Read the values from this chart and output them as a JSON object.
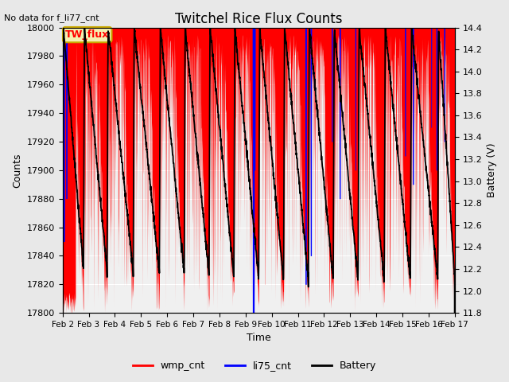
{
  "title": "Twitchel Rice Flux Counts",
  "no_data_label": "No data for f_li77_cnt",
  "tw_flux_label": "TW_flux",
  "xlabel": "Time",
  "ylabel_left": "Counts",
  "ylabel_right": "Battery (V)",
  "ylim_left": [
    17800,
    18000
  ],
  "ylim_right": [
    11.8,
    14.4
  ],
  "yticks_left": [
    17800,
    17820,
    17840,
    17860,
    17880,
    17900,
    17920,
    17940,
    17960,
    17980,
    18000
  ],
  "yticks_right": [
    11.8,
    12.0,
    12.2,
    12.4,
    12.6,
    12.8,
    13.0,
    13.2,
    13.4,
    13.6,
    13.8,
    14.0,
    14.2,
    14.4
  ],
  "xtick_labels": [
    "Feb 2",
    "Feb 3",
    "Feb 4",
    "Feb 5",
    "Feb 6",
    "Feb 7",
    "Feb 8",
    "Feb 9",
    "Feb 10",
    "Feb 11",
    "Feb 12",
    "Feb 13",
    "Feb 14",
    "Feb 15",
    "Feb 16",
    "Feb 17"
  ],
  "bg_color": "#e8e8e8",
  "plot_bg_color": "#f0f0f0",
  "wmp_color": "#ff0000",
  "li75_color": "#0000ff",
  "battery_color": "black",
  "tw_flux_box_color": "#f5f0b0",
  "tw_flux_box_edge": "#c8a800"
}
